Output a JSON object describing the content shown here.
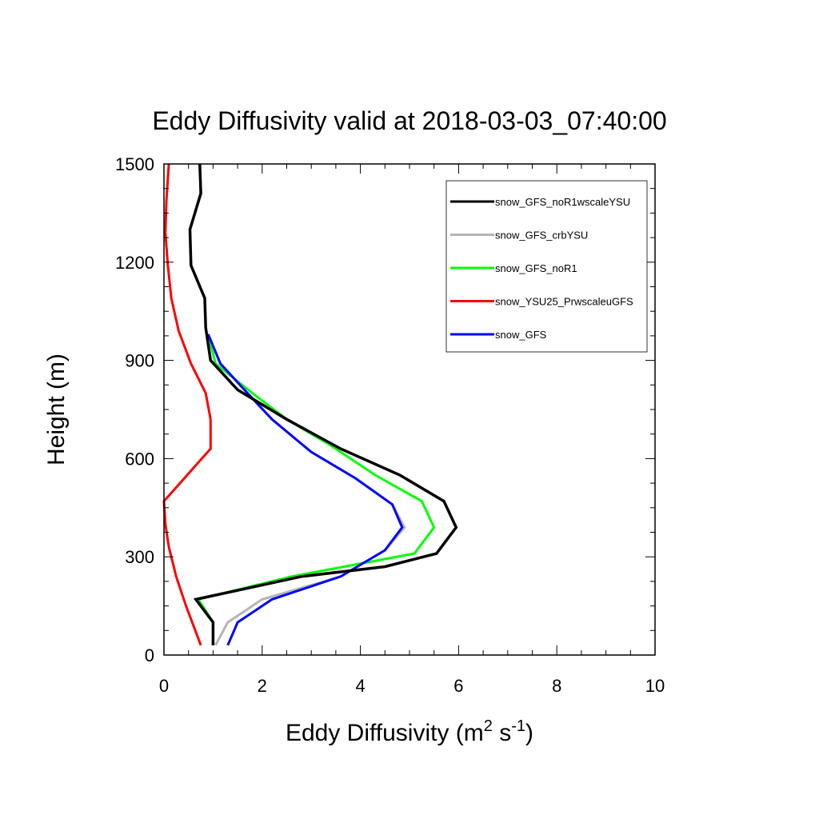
{
  "chart_data": {
    "type": "line",
    "title": "Eddy Diffusivity valid at 2018-03-03_07:40:00",
    "xlabel": {
      "base": "Eddy Diffusivity (m",
      "sup1": "2",
      "mid": " s",
      "sup2": "-1",
      "end": ")"
    },
    "ylabel": "Height (m)",
    "xlim": [
      0,
      10
    ],
    "ylim": [
      0,
      1500
    ],
    "xticks": [
      0,
      2,
      4,
      6,
      8,
      10
    ],
    "yticks": [
      0,
      300,
      600,
      900,
      1200,
      1500
    ],
    "grid": false,
    "legend_position": "top-right",
    "series": [
      {
        "name": "snow_GFS_noR1wscaleYSU",
        "color": "#000000",
        "points": [
          [
            1.0,
            30
          ],
          [
            1.0,
            100
          ],
          [
            0.65,
            170
          ],
          [
            2.8,
            240
          ],
          [
            4.5,
            270
          ],
          [
            5.55,
            310
          ],
          [
            5.95,
            390
          ],
          [
            5.7,
            470
          ],
          [
            4.8,
            550
          ],
          [
            3.6,
            630
          ],
          [
            2.5,
            720
          ],
          [
            1.5,
            810
          ],
          [
            0.95,
            900
          ],
          [
            0.85,
            1000
          ],
          [
            0.83,
            1090
          ],
          [
            0.55,
            1190
          ],
          [
            0.53,
            1300
          ],
          [
            0.75,
            1410
          ],
          [
            0.73,
            1500
          ]
        ]
      },
      {
        "name": "snow_GFS_crbYSU",
        "color": "#b5b5b5",
        "points": [
          [
            1.05,
            30
          ],
          [
            1.3,
            100
          ],
          [
            2.0,
            170
          ],
          [
            3.6,
            240
          ],
          [
            4.5,
            320
          ],
          [
            4.9,
            390
          ],
          [
            4.65,
            460
          ],
          [
            3.9,
            540
          ],
          [
            3.0,
            620
          ],
          [
            2.2,
            720
          ],
          [
            1.7,
            800
          ],
          [
            1.15,
            890
          ],
          [
            0.9,
            980
          ]
        ]
      },
      {
        "name": "snow_GFS_noR1",
        "color": "#00ff00",
        "points": [
          [
            1.0,
            30
          ],
          [
            1.0,
            100
          ],
          [
            0.7,
            170
          ],
          [
            2.6,
            240
          ],
          [
            5.1,
            310
          ],
          [
            5.5,
            390
          ],
          [
            5.25,
            470
          ],
          [
            4.3,
            550
          ],
          [
            3.4,
            640
          ],
          [
            2.5,
            720
          ],
          [
            1.8,
            800
          ],
          [
            1.05,
            890
          ],
          [
            0.9,
            980
          ]
        ]
      },
      {
        "name": "snow_YSU25_PrwscaleuGFS",
        "color": "#ff0000",
        "points": [
          [
            0.75,
            30
          ],
          [
            0.45,
            150
          ],
          [
            0.25,
            240
          ],
          [
            0.1,
            330
          ],
          [
            0.03,
            400
          ],
          [
            0.0,
            470
          ],
          [
            0.95,
            630
          ],
          [
            0.95,
            720
          ],
          [
            0.85,
            800
          ],
          [
            0.55,
            890
          ],
          [
            0.3,
            990
          ],
          [
            0.15,
            1090
          ],
          [
            0.08,
            1190
          ],
          [
            0.03,
            1290
          ],
          [
            0.05,
            1390
          ],
          [
            0.1,
            1500
          ]
        ]
      },
      {
        "name": "snow_GFS",
        "color": "#0000ff",
        "points": [
          [
            1.3,
            30
          ],
          [
            1.5,
            100
          ],
          [
            2.2,
            170
          ],
          [
            3.6,
            240
          ],
          [
            4.5,
            320
          ],
          [
            4.85,
            390
          ],
          [
            4.65,
            460
          ],
          [
            3.9,
            540
          ],
          [
            3.0,
            620
          ],
          [
            2.2,
            720
          ],
          [
            1.7,
            800
          ],
          [
            1.15,
            890
          ],
          [
            0.9,
            980
          ]
        ]
      }
    ]
  }
}
